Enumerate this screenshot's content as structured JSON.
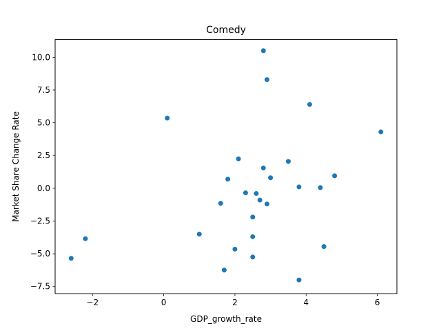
{
  "chart_data": {
    "type": "scatter",
    "title": "Comedy",
    "xlabel": "GDP_growth_rate",
    "ylabel": "Market Share Change Rate",
    "xlim": [
      -3.05,
      6.55
    ],
    "ylim": [
      -8.05,
      11.35
    ],
    "xticks": [
      -2,
      0,
      2,
      4,
      6
    ],
    "xtick_labels": [
      "−2",
      "0",
      "2",
      "4",
      "6"
    ],
    "yticks": [
      -7.5,
      -5.0,
      -2.5,
      0.0,
      2.5,
      5.0,
      7.5,
      10.0
    ],
    "ytick_labels": [
      "−7.5",
      "−5.0",
      "−2.5",
      "0.0",
      "2.5",
      "5.0",
      "7.5",
      "10.0"
    ],
    "grid": false,
    "color": "#1f77b4",
    "series": [
      {
        "x": [
          2.8,
          2.9,
          4.1,
          0.1,
          6.1,
          2.1,
          3.5,
          2.8,
          4.8,
          3.0,
          1.8,
          3.8,
          4.4,
          2.3,
          2.6,
          2.7,
          1.6,
          2.9,
          2.5,
          1.0,
          2.5,
          -2.2,
          4.5,
          2.0,
          2.5,
          -2.6,
          1.7,
          3.8
        ],
        "y": [
          10.5,
          8.3,
          6.4,
          5.35,
          4.3,
          2.25,
          2.05,
          1.55,
          0.95,
          0.8,
          0.7,
          0.1,
          0.05,
          -0.35,
          -0.4,
          -0.9,
          -1.15,
          -1.2,
          -2.2,
          -3.5,
          -3.7,
          -3.85,
          -4.45,
          -4.65,
          -5.25,
          -5.35,
          -6.25,
          -7.0
        ]
      }
    ]
  }
}
